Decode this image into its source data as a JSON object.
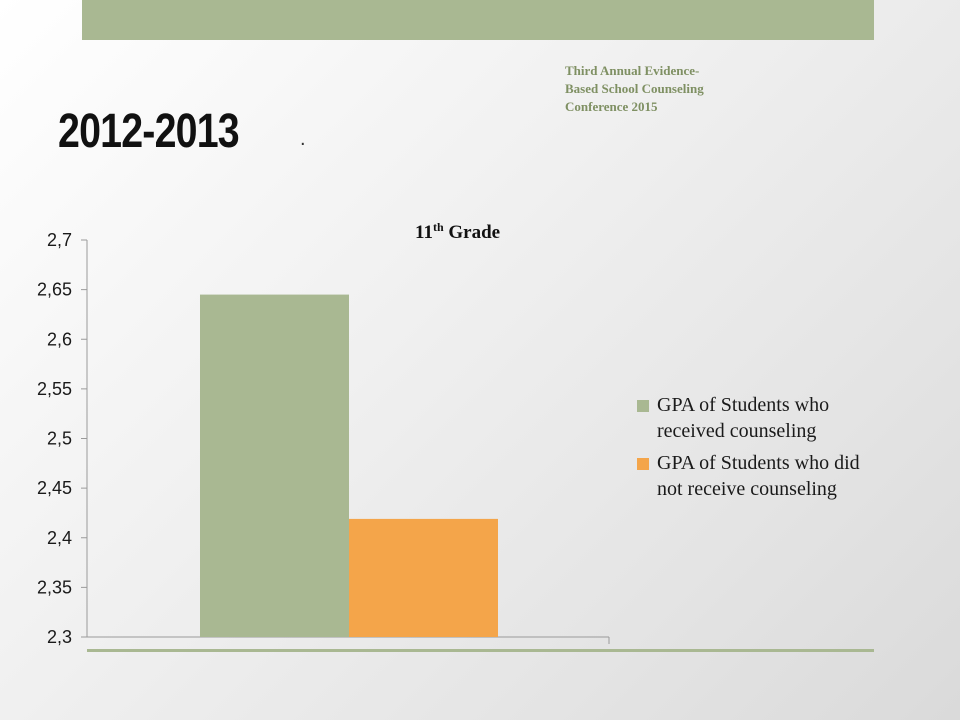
{
  "header": {
    "conference_lines": [
      "Third Annual Evidence-",
      "Based School Counseling",
      "Conference 2015"
    ],
    "page_title": "2012-2013",
    "title_suffix": "."
  },
  "colors": {
    "accent": "#a9b892",
    "series_received": "#a9b892",
    "series_not_received": "#f4a54a",
    "conference_text": "#7f9063"
  },
  "chart_data": {
    "type": "bar",
    "title_main": "11",
    "title_sup": "th",
    "title_rest": " Grade",
    "categories": [
      ""
    ],
    "ylim": [
      2.3,
      2.7
    ],
    "yticks": [
      "2,3",
      "2,35",
      "2,4",
      "2,45",
      "2,5",
      "2,55",
      "2,6",
      "2,65",
      "2,7"
    ],
    "ytick_values": [
      2.3,
      2.35,
      2.4,
      2.45,
      2.5,
      2.55,
      2.6,
      2.65,
      2.7
    ],
    "series": [
      {
        "name_lines": [
          "GPA of Students who",
          "received counseling"
        ],
        "values": [
          2.645
        ]
      },
      {
        "name_lines": [
          "GPA of Students who did",
          "not receive counseling"
        ],
        "values": [
          2.419
        ]
      }
    ],
    "legend_position": "right"
  }
}
